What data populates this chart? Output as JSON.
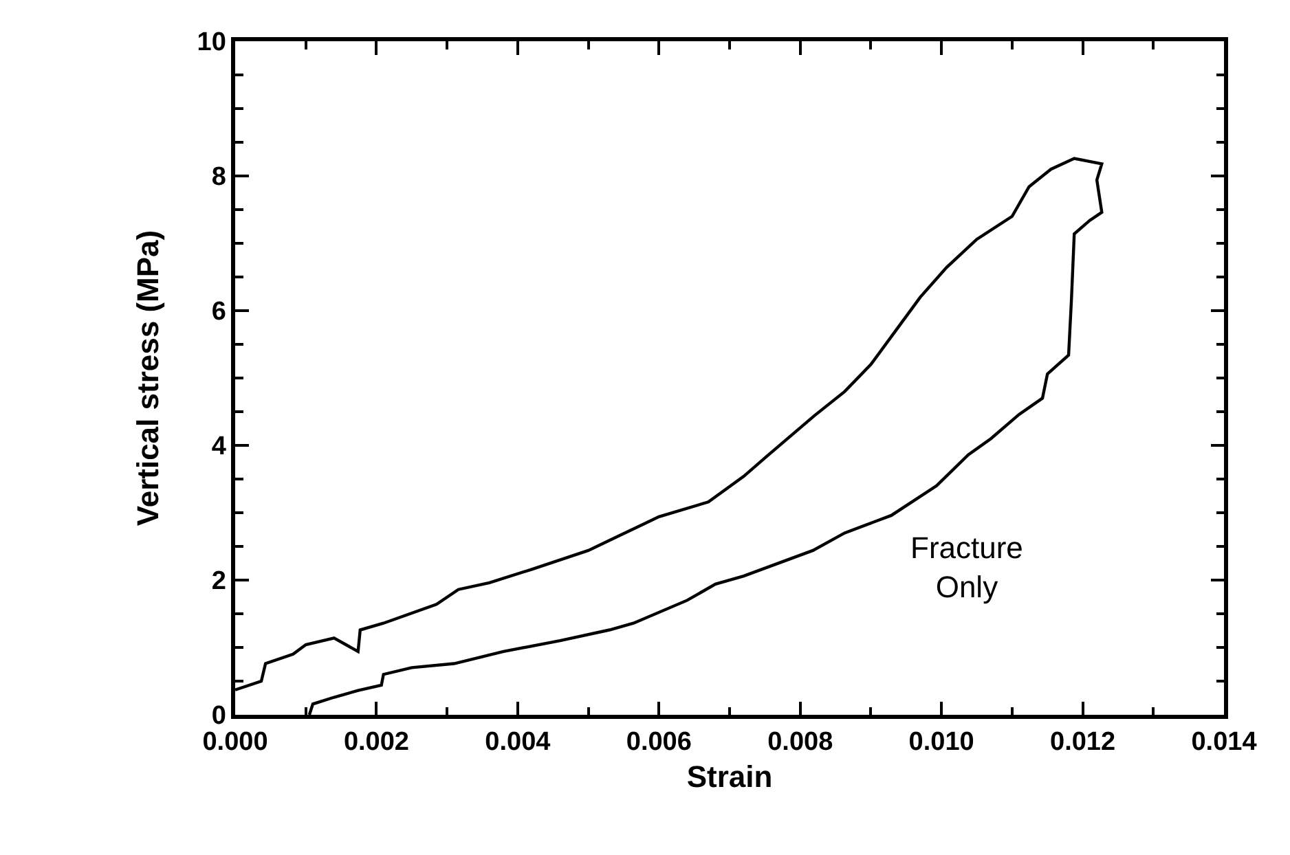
{
  "chart_data": {
    "type": "line",
    "xlabel": "Strain",
    "ylabel": "Vertical stress (MPa)",
    "x": [
      0,
      0.00037,
      0.00043,
      0.00082,
      0.001,
      0.0014,
      0.00174,
      0.00177,
      0.0021,
      0.00285,
      0.00316,
      0.0036,
      0.0042,
      0.005,
      0.0054,
      0.006,
      0.0067,
      0.0072,
      0.00753,
      0.0082,
      0.00863,
      0.009,
      0.00935,
      0.0097,
      0.01007,
      0.0105,
      0.011,
      0.01124,
      0.01155,
      0.01188,
      0.01227,
      0.0122,
      0.01227,
      0.0121,
      0.01188,
      0.01184,
      0.0118,
      0.0115,
      0.01143,
      0.0111,
      0.0107,
      0.01038,
      0.00993,
      0.00929,
      0.00863,
      0.00818,
      0.0072,
      0.0068,
      0.0064,
      0.00564,
      0.0053,
      0.0046,
      0.0038,
      0.0031,
      0.0025,
      0.0021,
      0.00207,
      0.00174,
      0.0014,
      0.0011,
      0.00105
    ],
    "series": [
      {
        "color": "#000000",
        "values": [
          0.37,
          0.5,
          0.76,
          0.9,
          1.04,
          1.14,
          0.94,
          1.26,
          1.36,
          1.64,
          1.86,
          1.96,
          2.16,
          2.44,
          2.64,
          2.94,
          3.16,
          3.54,
          3.84,
          4.44,
          4.8,
          5.2,
          5.7,
          6.2,
          6.64,
          7.06,
          7.4,
          7.84,
          8.1,
          8.26,
          8.18,
          7.94,
          7.46,
          7.34,
          7.14,
          6.16,
          5.34,
          5.06,
          4.7,
          4.46,
          4.1,
          3.86,
          3.4,
          2.96,
          2.7,
          2.44,
          2.06,
          1.94,
          1.7,
          1.36,
          1.26,
          1.1,
          0.94,
          0.76,
          0.7,
          0.6,
          0.44,
          0.36,
          0.26,
          0.16,
          0
        ]
      }
    ],
    "xlim": [
      0,
      0.014
    ],
    "ylim": [
      0,
      10
    ],
    "xticks": [
      {
        "value": 0,
        "label": "0.000"
      },
      {
        "value": 0.001,
        "label": null
      },
      {
        "value": 0.002,
        "label": "0.002"
      },
      {
        "value": 0.003,
        "label": null
      },
      {
        "value": 0.004,
        "label": "0.004"
      },
      {
        "value": 0.005,
        "label": null
      },
      {
        "value": 0.006,
        "label": "0.006"
      },
      {
        "value": 0.007,
        "label": null
      },
      {
        "value": 0.008,
        "label": "0.008"
      },
      {
        "value": 0.009,
        "label": null
      },
      {
        "value": 0.01,
        "label": "0.010"
      },
      {
        "value": 0.011,
        "label": null
      },
      {
        "value": 0.012,
        "label": "0.012"
      },
      {
        "value": 0.013,
        "label": null
      },
      {
        "value": 0.014,
        "label": "0.014"
      }
    ],
    "yticks": [
      0,
      {
        "value": 0.5,
        "label": null
      },
      {
        "value": 1,
        "label": null
      },
      {
        "value": 1.5,
        "label": null
      },
      2,
      {
        "value": 2.5,
        "label": null
      },
      {
        "value": 3,
        "label": null
      },
      {
        "value": 3.5,
        "label": null
      },
      4,
      {
        "value": 4.5,
        "label": null
      },
      {
        "value": 5,
        "label": null
      },
      {
        "value": 5.5,
        "label": null
      },
      6,
      {
        "value": 6.5,
        "label": null
      },
      {
        "value": 7,
        "label": null
      },
      {
        "value": 7.5,
        "label": null
      },
      8,
      {
        "value": 8.5,
        "label": null
      },
      {
        "value": 9,
        "label": null
      },
      {
        "value": 9.5,
        "label": null
      },
      10
    ],
    "annotations": [
      "Fracture\nOnly"
    ],
    "marker": "none",
    "line_style": "solid"
  }
}
